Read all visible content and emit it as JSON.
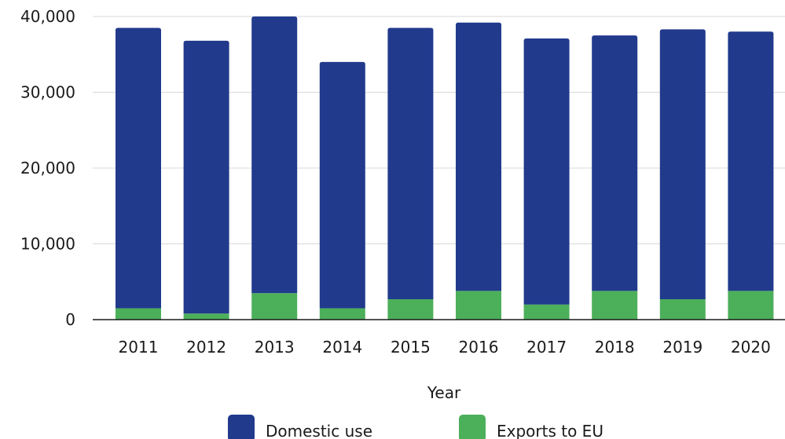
{
  "chart_data": {
    "type": "bar",
    "stacked": true,
    "categories": [
      "2011",
      "2012",
      "2013",
      "2014",
      "2015",
      "2016",
      "2017",
      "2018",
      "2019",
      "2020"
    ],
    "series": [
      {
        "name": "Exports to EU",
        "color": "#4caf5a",
        "values": [
          1500,
          800,
          3500,
          1500,
          2700,
          3800,
          2000,
          3800,
          2700,
          3800
        ]
      },
      {
        "name": "Domestic use",
        "color": "#213a8c",
        "values": [
          37000,
          36000,
          36500,
          32500,
          35800,
          35400,
          35100,
          33700,
          35600,
          34200
        ]
      }
    ],
    "xlabel": "Year",
    "ylabel": "",
    "ylim": [
      0,
      40000
    ],
    "yticks": [
      "0",
      "10,000",
      "20,000",
      "30,000",
      "40,000"
    ],
    "grid": true,
    "legend_position": "bottom",
    "legend_order": [
      "Domestic use",
      "Exports to EU"
    ]
  }
}
